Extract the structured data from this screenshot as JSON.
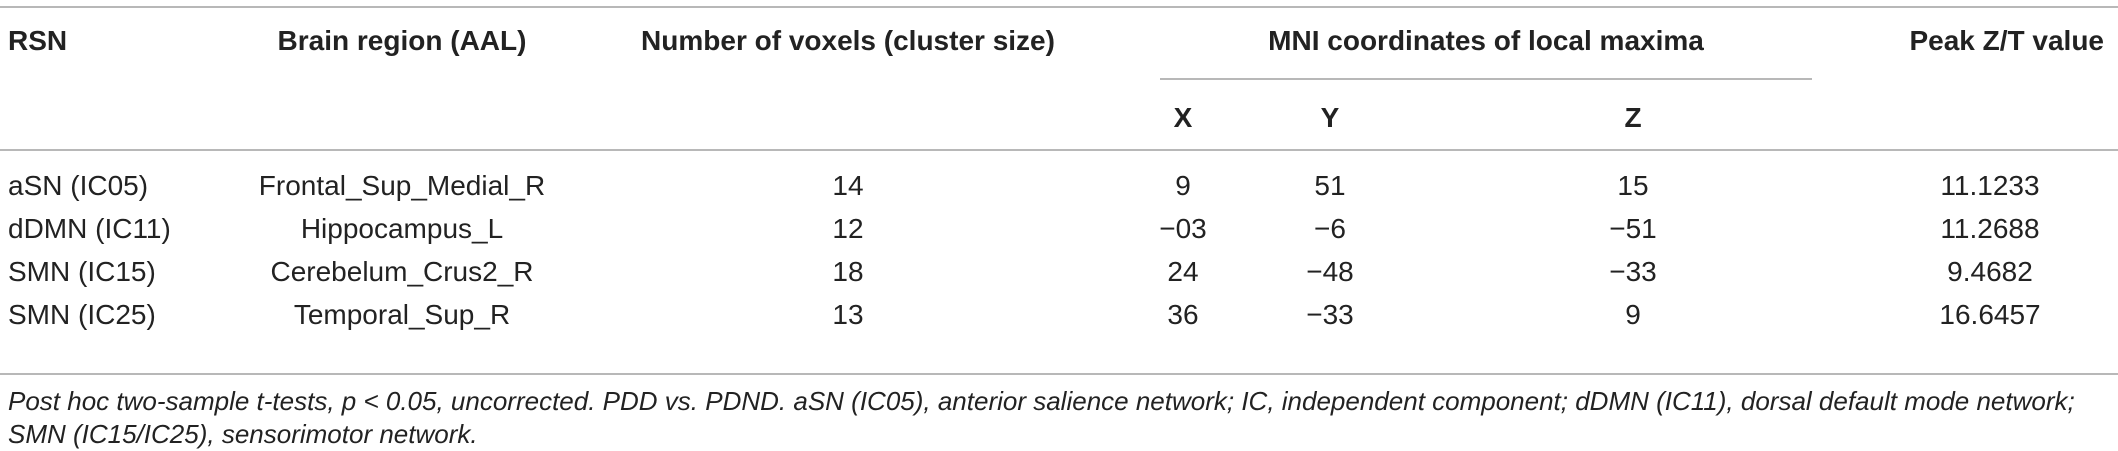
{
  "table": {
    "headers": {
      "rsn": "RSN",
      "region": "Brain region (AAL)",
      "voxels": "Number of voxels (cluster size)",
      "mni": "MNI coordinates of local maxima",
      "x": "X",
      "y": "Y",
      "z": "Z",
      "peak": "Peak Z/T value"
    },
    "rows": [
      {
        "rsn": "aSN (IC05)",
        "region": "Frontal_Sup_Medial_R",
        "voxels": "14",
        "x": "9",
        "y": "51",
        "z": "15",
        "peak": "11.1233"
      },
      {
        "rsn": "dDMN (IC11)",
        "region": "Hippocampus_L",
        "voxels": "12",
        "x": "−03",
        "y": "−6",
        "z": "−51",
        "peak": "11.2688"
      },
      {
        "rsn": "SMN (IC15)",
        "region": "Cerebelum_Crus2_R",
        "voxels": "18",
        "x": "24",
        "y": "−48",
        "z": "−33",
        "peak": "9.4682"
      },
      {
        "rsn": "SMN (IC25)",
        "region": "Temporal_Sup_R",
        "voxels": "13",
        "x": "36",
        "y": "−33",
        "z": "9",
        "peak": "16.6457"
      }
    ],
    "footnote": "Post hoc two-sample t-tests, p < 0.05, uncorrected. PDD vs. PDND. aSN (IC05), anterior salience network; IC, independent component; dDMN (IC11), dorsal default mode network; SMN (IC15/IC25), sensorimotor network."
  }
}
